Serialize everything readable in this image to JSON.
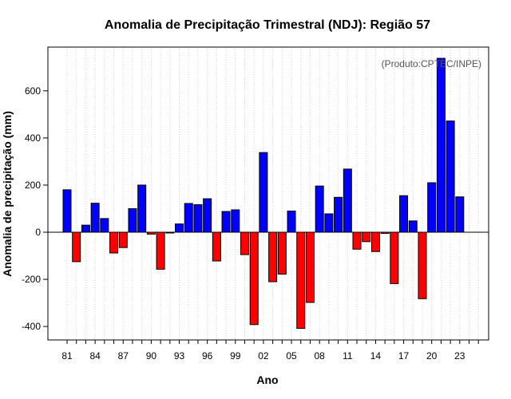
{
  "chart_data": {
    "type": "bar",
    "title": "Anomalia de Precipitação Trimestral (NDJ): Região 57",
    "xlabel": "Ano",
    "ylabel": "Anomalia de precipitação (mm)",
    "credit": "(Produto:CPTEC/INPE)",
    "ylim": [
      -460,
      790
    ],
    "yticks": [
      -400,
      -200,
      0,
      200,
      400,
      600
    ],
    "xtick_labels": [
      "81",
      "84",
      "87",
      "90",
      "93",
      "96",
      "99",
      "02",
      "05",
      "08",
      "11",
      "14",
      "17",
      "20",
      "23"
    ],
    "categories": [
      "1981",
      "1982",
      "1983",
      "1984",
      "1985",
      "1986",
      "1987",
      "1988",
      "1989",
      "1990",
      "1991",
      "1992",
      "1993",
      "1994",
      "1995",
      "1996",
      "1997",
      "1998",
      "1999",
      "2000",
      "2001",
      "2002",
      "2003",
      "2004",
      "2005",
      "2006",
      "2007",
      "2008",
      "2009",
      "2010",
      "2011",
      "2012",
      "2013",
      "2014",
      "2015",
      "2016",
      "2017",
      "2018",
      "2019",
      "2020",
      "2021",
      "2022",
      "2023"
    ],
    "values": [
      180,
      -125,
      30,
      123,
      58,
      -88,
      -65,
      100,
      200,
      -8,
      -157,
      -3,
      35,
      122,
      117,
      142,
      -122,
      88,
      95,
      -95,
      -392,
      338,
      -210,
      -178,
      90,
      -408,
      -298,
      196,
      78,
      148,
      268,
      -72,
      -40,
      -82,
      -5,
      -218,
      155,
      48,
      -282,
      210,
      738,
      472,
      150
    ],
    "positive_color": "#0000ff",
    "negative_color": "#ff0000",
    "grid": true
  }
}
